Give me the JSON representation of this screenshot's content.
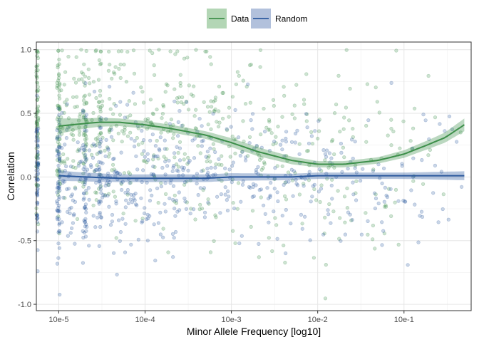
{
  "chart_data": {
    "type": "scatter",
    "title": "",
    "xlabel": "Minor Allele Frequency [log10]",
    "ylabel": "Correlation",
    "x_scale": "log10",
    "xlim": [
      5.5e-06,
      0.6
    ],
    "ylim": [
      -1.05,
      1.06
    ],
    "x_ticks": [
      1e-05,
      0.0001,
      0.001,
      0.01,
      0.1
    ],
    "x_tick_labels": [
      "10e-5",
      "10e-4",
      "10e-3",
      "10e-2",
      "10e-1"
    ],
    "y_ticks": [
      -1.0,
      -0.5,
      0.0,
      0.5,
      1.0
    ],
    "y_tick_labels": [
      "-1.0",
      "-0.5",
      "0.0",
      "0.5",
      "1.0"
    ],
    "grid": true,
    "legend_position": "top",
    "colors": {
      "Data": "#3d8f4a",
      "Random": "#2c5a9e"
    },
    "point_count_per_series": 700,
    "series": [
      {
        "name": "Data",
        "point_alpha": 0.25,
        "smooth": {
          "x": [
            1e-05,
            2e-05,
            3e-05,
            5e-05,
            0.0001,
            0.0002,
            0.0005,
            0.001,
            0.002,
            0.005,
            0.01,
            0.02,
            0.05,
            0.1,
            0.2,
            0.3,
            0.5
          ],
          "y": [
            0.4,
            0.42,
            0.43,
            0.43,
            0.41,
            0.38,
            0.33,
            0.27,
            0.2,
            0.13,
            0.1,
            0.1,
            0.13,
            0.18,
            0.26,
            0.31,
            0.41
          ],
          "band_half_width": [
            0.06,
            0.04,
            0.035,
            0.03,
            0.03,
            0.03,
            0.03,
            0.035,
            0.035,
            0.03,
            0.025,
            0.025,
            0.025,
            0.03,
            0.035,
            0.04,
            0.05
          ]
        }
      },
      {
        "name": "Random",
        "point_alpha": 0.25,
        "smooth": {
          "x": [
            1e-05,
            2e-05,
            5e-05,
            0.0001,
            0.0005,
            0.001,
            0.005,
            0.01,
            0.05,
            0.1,
            0.5
          ],
          "y": [
            0.01,
            0.0,
            -0.01,
            -0.01,
            -0.01,
            0.0,
            0.0,
            0.01,
            0.01,
            0.01,
            0.01
          ],
          "band_half_width": [
            0.04,
            0.035,
            0.03,
            0.03,
            0.03,
            0.03,
            0.025,
            0.025,
            0.025,
            0.025,
            0.035
          ]
        }
      }
    ]
  }
}
